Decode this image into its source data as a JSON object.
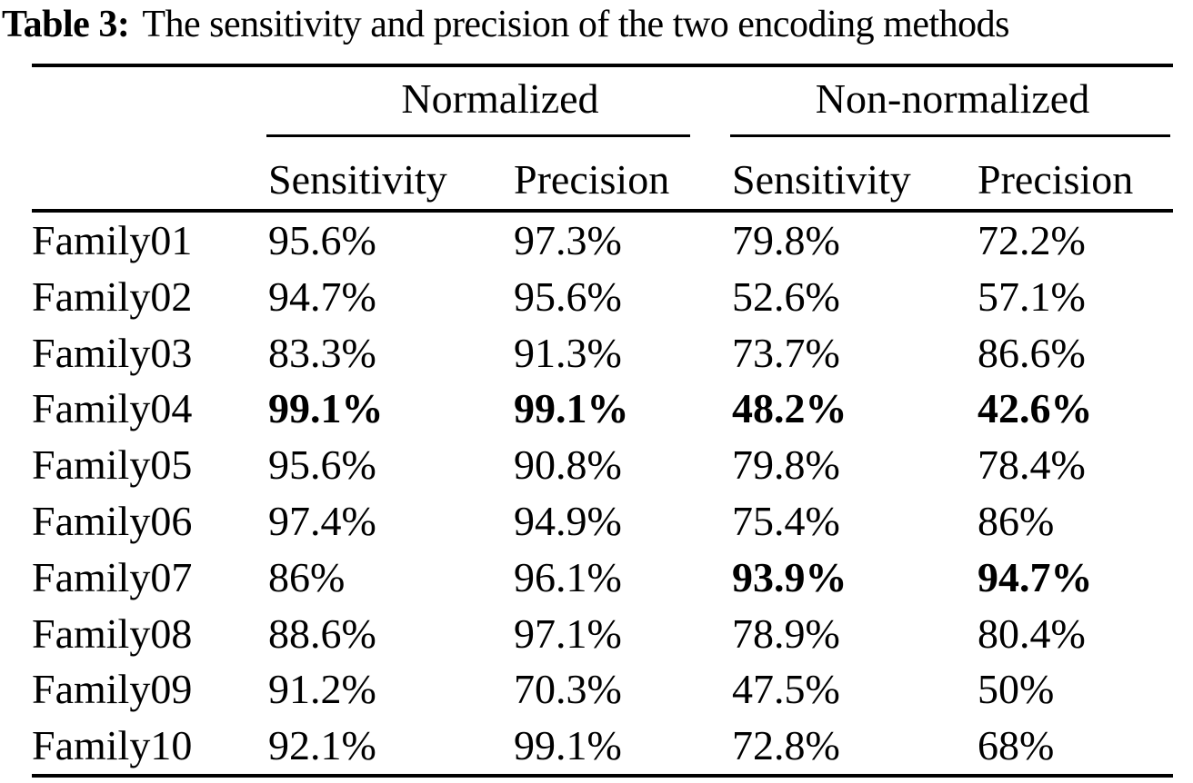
{
  "title": {
    "label": "Table 3:",
    "caption": "The sensitivity and precision of the two encoding methods"
  },
  "table": {
    "column_groups": [
      {
        "label": "Normalized"
      },
      {
        "label": "Non-normalized"
      }
    ],
    "sub_headers": [
      "Sensitivity",
      "Precision",
      "Sensitivity",
      "Precision"
    ],
    "rows": [
      {
        "family": "Family01",
        "values": [
          "95.6%",
          "97.3%",
          "79.8%",
          "72.2%"
        ],
        "bold": [
          false,
          false,
          false,
          false
        ]
      },
      {
        "family": "Family02",
        "values": [
          "94.7%",
          "95.6%",
          "52.6%",
          "57.1%"
        ],
        "bold": [
          false,
          false,
          false,
          false
        ]
      },
      {
        "family": "Family03",
        "values": [
          "83.3%",
          "91.3%",
          "73.7%",
          "86.6%"
        ],
        "bold": [
          false,
          false,
          false,
          false
        ]
      },
      {
        "family": "Family04",
        "values": [
          "99.1%",
          "99.1%",
          "48.2%",
          "42.6%"
        ],
        "bold": [
          true,
          true,
          true,
          true
        ]
      },
      {
        "family": "Family05",
        "values": [
          "95.6%",
          "90.8%",
          "79.8%",
          "78.4%"
        ],
        "bold": [
          false,
          false,
          false,
          false
        ]
      },
      {
        "family": "Family06",
        "values": [
          "97.4%",
          "94.9%",
          "75.4%",
          "86%"
        ],
        "bold": [
          false,
          false,
          false,
          false
        ]
      },
      {
        "family": "Family07",
        "values": [
          "86%",
          "96.1%",
          "93.9%",
          "94.7%"
        ],
        "bold": [
          false,
          false,
          true,
          true
        ]
      },
      {
        "family": "Family08",
        "values": [
          "88.6%",
          "97.1%",
          "78.9%",
          "80.4%"
        ],
        "bold": [
          false,
          false,
          false,
          false
        ]
      },
      {
        "family": "Family09",
        "values": [
          "91.2%",
          "70.3%",
          "47.5%",
          "50%"
        ],
        "bold": [
          false,
          false,
          false,
          false
        ]
      },
      {
        "family": "Family10",
        "values": [
          "92.1%",
          "99.1%",
          "72.8%",
          "68%"
        ],
        "bold": [
          false,
          false,
          false,
          false
        ]
      }
    ]
  },
  "colors": {
    "text": "#000000",
    "background": "#ffffff",
    "rule": "#000000"
  }
}
